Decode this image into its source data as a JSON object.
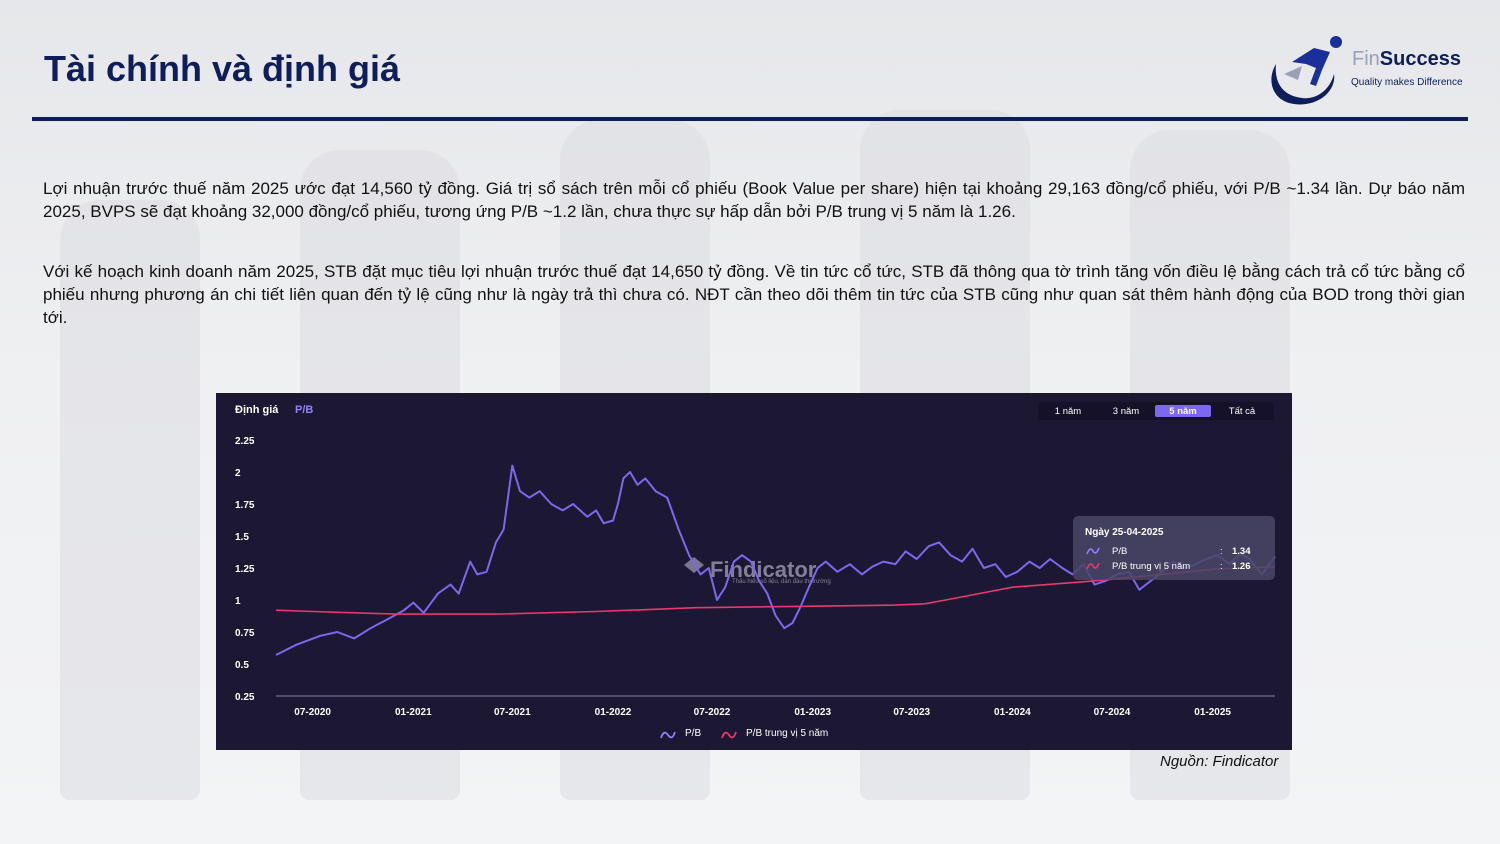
{
  "header": {
    "title": "Tài chính và định giá",
    "logo": {
      "prefix": "Fin",
      "name": "Success",
      "tagline": "Quality makes Difference"
    }
  },
  "paragraphs": [
    "Lợi nhuận trước thuế năm 2025 ước đạt 14,560 tỷ đồng. Giá trị sổ sách trên mỗi cổ phiếu (Book Value per share) hiện tại khoảng 29,163 đồng/cổ phiếu, với P/B ~1.34 lần. Dự báo năm 2025, BVPS sẽ đạt khoảng 32,000 đồng/cổ phiếu, tương ứng P/B ~1.2 lần, chưa thực sự hấp dẫn bởi P/B trung vị 5 năm là 1.26.",
    "Với kế hoạch kinh doanh năm 2025, STB đặt mục tiêu lợi nhuận trước thuế đạt 14,650 tỷ đồng. Về tin tức cổ tức, STB đã thông qua tờ trình tăng vốn điều lệ bằng cách trả cổ tức bằng cổ phiếu nhưng phương án chi tiết liên quan đến tỷ lệ cũng như là ngày trả thì chưa có. NĐT cần theo dõi thêm tin tức của STB cũng như quan sát thêm hành động của BOD trong thời gian tới."
  ],
  "source": "Nguồn: Findicator",
  "chart": {
    "title_prefix": "Định giá",
    "title_metric": "P/B",
    "range_tabs": [
      "1 năm",
      "3 năm",
      "5 năm",
      "Tất cả"
    ],
    "active_tab": "5 năm",
    "watermark": {
      "name": "Findicator",
      "tagline": "Thấu hiểu số liệu, dẫn đầu thị trường"
    },
    "tooltip": {
      "title": "Ngày 25-04-2025",
      "rows": [
        {
          "label": "P/B",
          "sep": ":",
          "value": "1.34"
        },
        {
          "label": "P/B trung vị 5 năm",
          "sep": ":",
          "value": "1.26"
        }
      ]
    },
    "legend": [
      "P/B",
      "P/B trung vị 5 năm"
    ],
    "colors": {
      "background": "#1c1834",
      "pb": "#7b68ee",
      "median": "#e8386d",
      "axis": "#ffffff",
      "active_tab": "#7b68ee"
    }
  },
  "chart_data": {
    "type": "line",
    "x_ticks": [
      "07-2020",
      "01-2021",
      "07-2021",
      "01-2022",
      "07-2022",
      "01-2023",
      "07-2023",
      "01-2024",
      "07-2024",
      "01-2025"
    ],
    "y_ticks": [
      "2.25",
      "2",
      "1.75",
      "1.5",
      "1.25",
      "1",
      "0.75",
      "0.5",
      "0.25"
    ],
    "ylim": [
      0.25,
      2.25
    ],
    "xlim": [
      "2020-04-25",
      "2025-04-25"
    ],
    "grid": false,
    "legend_position": "bottom-center",
    "series": [
      {
        "name": "P/B",
        "points": [
          [
            "2020-04-25",
            0.57
          ],
          [
            "2020-06-01",
            0.65
          ],
          [
            "2020-07-15",
            0.72
          ],
          [
            "2020-08-15",
            0.75
          ],
          [
            "2020-09-15",
            0.7
          ],
          [
            "2020-10-15",
            0.78
          ],
          [
            "2020-11-15",
            0.85
          ],
          [
            "2020-12-15",
            0.92
          ],
          [
            "2021-01-01",
            0.98
          ],
          [
            "2021-01-20",
            0.9
          ],
          [
            "2021-02-15",
            1.05
          ],
          [
            "2021-03-10",
            1.12
          ],
          [
            "2021-03-25",
            1.05
          ],
          [
            "2021-04-15",
            1.3
          ],
          [
            "2021-04-28",
            1.2
          ],
          [
            "2021-05-15",
            1.22
          ],
          [
            "2021-06-01",
            1.45
          ],
          [
            "2021-06-15",
            1.55
          ],
          [
            "2021-07-01",
            2.05
          ],
          [
            "2021-07-15",
            1.85
          ],
          [
            "2021-08-01",
            1.8
          ],
          [
            "2021-08-20",
            1.85
          ],
          [
            "2021-09-10",
            1.75
          ],
          [
            "2021-10-01",
            1.7
          ],
          [
            "2021-10-20",
            1.75
          ],
          [
            "2021-11-15",
            1.65
          ],
          [
            "2021-12-01",
            1.7
          ],
          [
            "2021-12-15",
            1.6
          ],
          [
            "2022-01-01",
            1.62
          ],
          [
            "2022-01-10",
            1.75
          ],
          [
            "2022-01-20",
            1.95
          ],
          [
            "2022-02-01",
            2.0
          ],
          [
            "2022-02-15",
            1.9
          ],
          [
            "2022-03-01",
            1.95
          ],
          [
            "2022-03-20",
            1.85
          ],
          [
            "2022-04-10",
            1.8
          ],
          [
            "2022-05-01",
            1.55
          ],
          [
            "2022-05-20",
            1.35
          ],
          [
            "2022-06-10",
            1.2
          ],
          [
            "2022-06-25",
            1.25
          ],
          [
            "2022-07-10",
            1.0
          ],
          [
            "2022-07-25",
            1.1
          ],
          [
            "2022-08-10",
            1.3
          ],
          [
            "2022-08-25",
            1.35
          ],
          [
            "2022-09-10",
            1.3
          ],
          [
            "2022-09-25",
            1.15
          ],
          [
            "2022-10-10",
            1.05
          ],
          [
            "2022-10-25",
            0.88
          ],
          [
            "2022-11-10",
            0.78
          ],
          [
            "2022-11-25",
            0.82
          ],
          [
            "2022-12-10",
            0.95
          ],
          [
            "2022-12-25",
            1.1
          ],
          [
            "2023-01-10",
            1.25
          ],
          [
            "2023-01-25",
            1.3
          ],
          [
            "2023-02-15",
            1.22
          ],
          [
            "2023-03-10",
            1.28
          ],
          [
            "2023-04-01",
            1.2
          ],
          [
            "2023-04-20",
            1.26
          ],
          [
            "2023-05-10",
            1.3
          ],
          [
            "2023-06-01",
            1.28
          ],
          [
            "2023-06-20",
            1.38
          ],
          [
            "2023-07-10",
            1.32
          ],
          [
            "2023-08-01",
            1.42
          ],
          [
            "2023-08-20",
            1.45
          ],
          [
            "2023-09-10",
            1.35
          ],
          [
            "2023-10-01",
            1.3
          ],
          [
            "2023-10-20",
            1.4
          ],
          [
            "2023-11-10",
            1.25
          ],
          [
            "2023-12-01",
            1.28
          ],
          [
            "2023-12-20",
            1.18
          ],
          [
            "2024-01-10",
            1.22
          ],
          [
            "2024-02-01",
            1.3
          ],
          [
            "2024-02-20",
            1.25
          ],
          [
            "2024-03-10",
            1.32
          ],
          [
            "2024-04-01",
            1.25
          ],
          [
            "2024-04-20",
            1.2
          ],
          [
            "2024-05-10",
            1.28
          ],
          [
            "2024-05-30",
            1.12
          ],
          [
            "2024-06-20",
            1.15
          ],
          [
            "2024-07-10",
            1.2
          ],
          [
            "2024-08-01",
            1.22
          ],
          [
            "2024-08-20",
            1.08
          ],
          [
            "2024-09-10",
            1.15
          ],
          [
            "2024-10-01",
            1.22
          ],
          [
            "2024-10-20",
            1.3
          ],
          [
            "2024-11-10",
            1.25
          ],
          [
            "2024-12-01",
            1.28
          ],
          [
            "2024-12-20",
            1.32
          ],
          [
            "2025-01-10",
            1.35
          ],
          [
            "2025-02-01",
            1.28
          ],
          [
            "2025-02-20",
            1.36
          ],
          [
            "2025-03-10",
            1.32
          ],
          [
            "2025-04-01",
            1.2
          ],
          [
            "2025-04-25",
            1.34
          ]
        ]
      },
      {
        "name": "P/B trung vị 5 năm",
        "points": [
          [
            "2020-04-25",
            0.92
          ],
          [
            "2020-07-01",
            0.91
          ],
          [
            "2020-12-01",
            0.89
          ],
          [
            "2021-06-01",
            0.89
          ],
          [
            "2021-12-01",
            0.91
          ],
          [
            "2022-06-01",
            0.94
          ],
          [
            "2022-12-01",
            0.95
          ],
          [
            "2023-06-01",
            0.96
          ],
          [
            "2023-07-25",
            0.97
          ],
          [
            "2023-09-01",
            1.0
          ],
          [
            "2023-11-01",
            1.05
          ],
          [
            "2024-01-01",
            1.1
          ],
          [
            "2024-06-01",
            1.15
          ],
          [
            "2024-10-01",
            1.2
          ],
          [
            "2025-01-01",
            1.24
          ],
          [
            "2025-04-25",
            1.26
          ]
        ]
      }
    ]
  }
}
